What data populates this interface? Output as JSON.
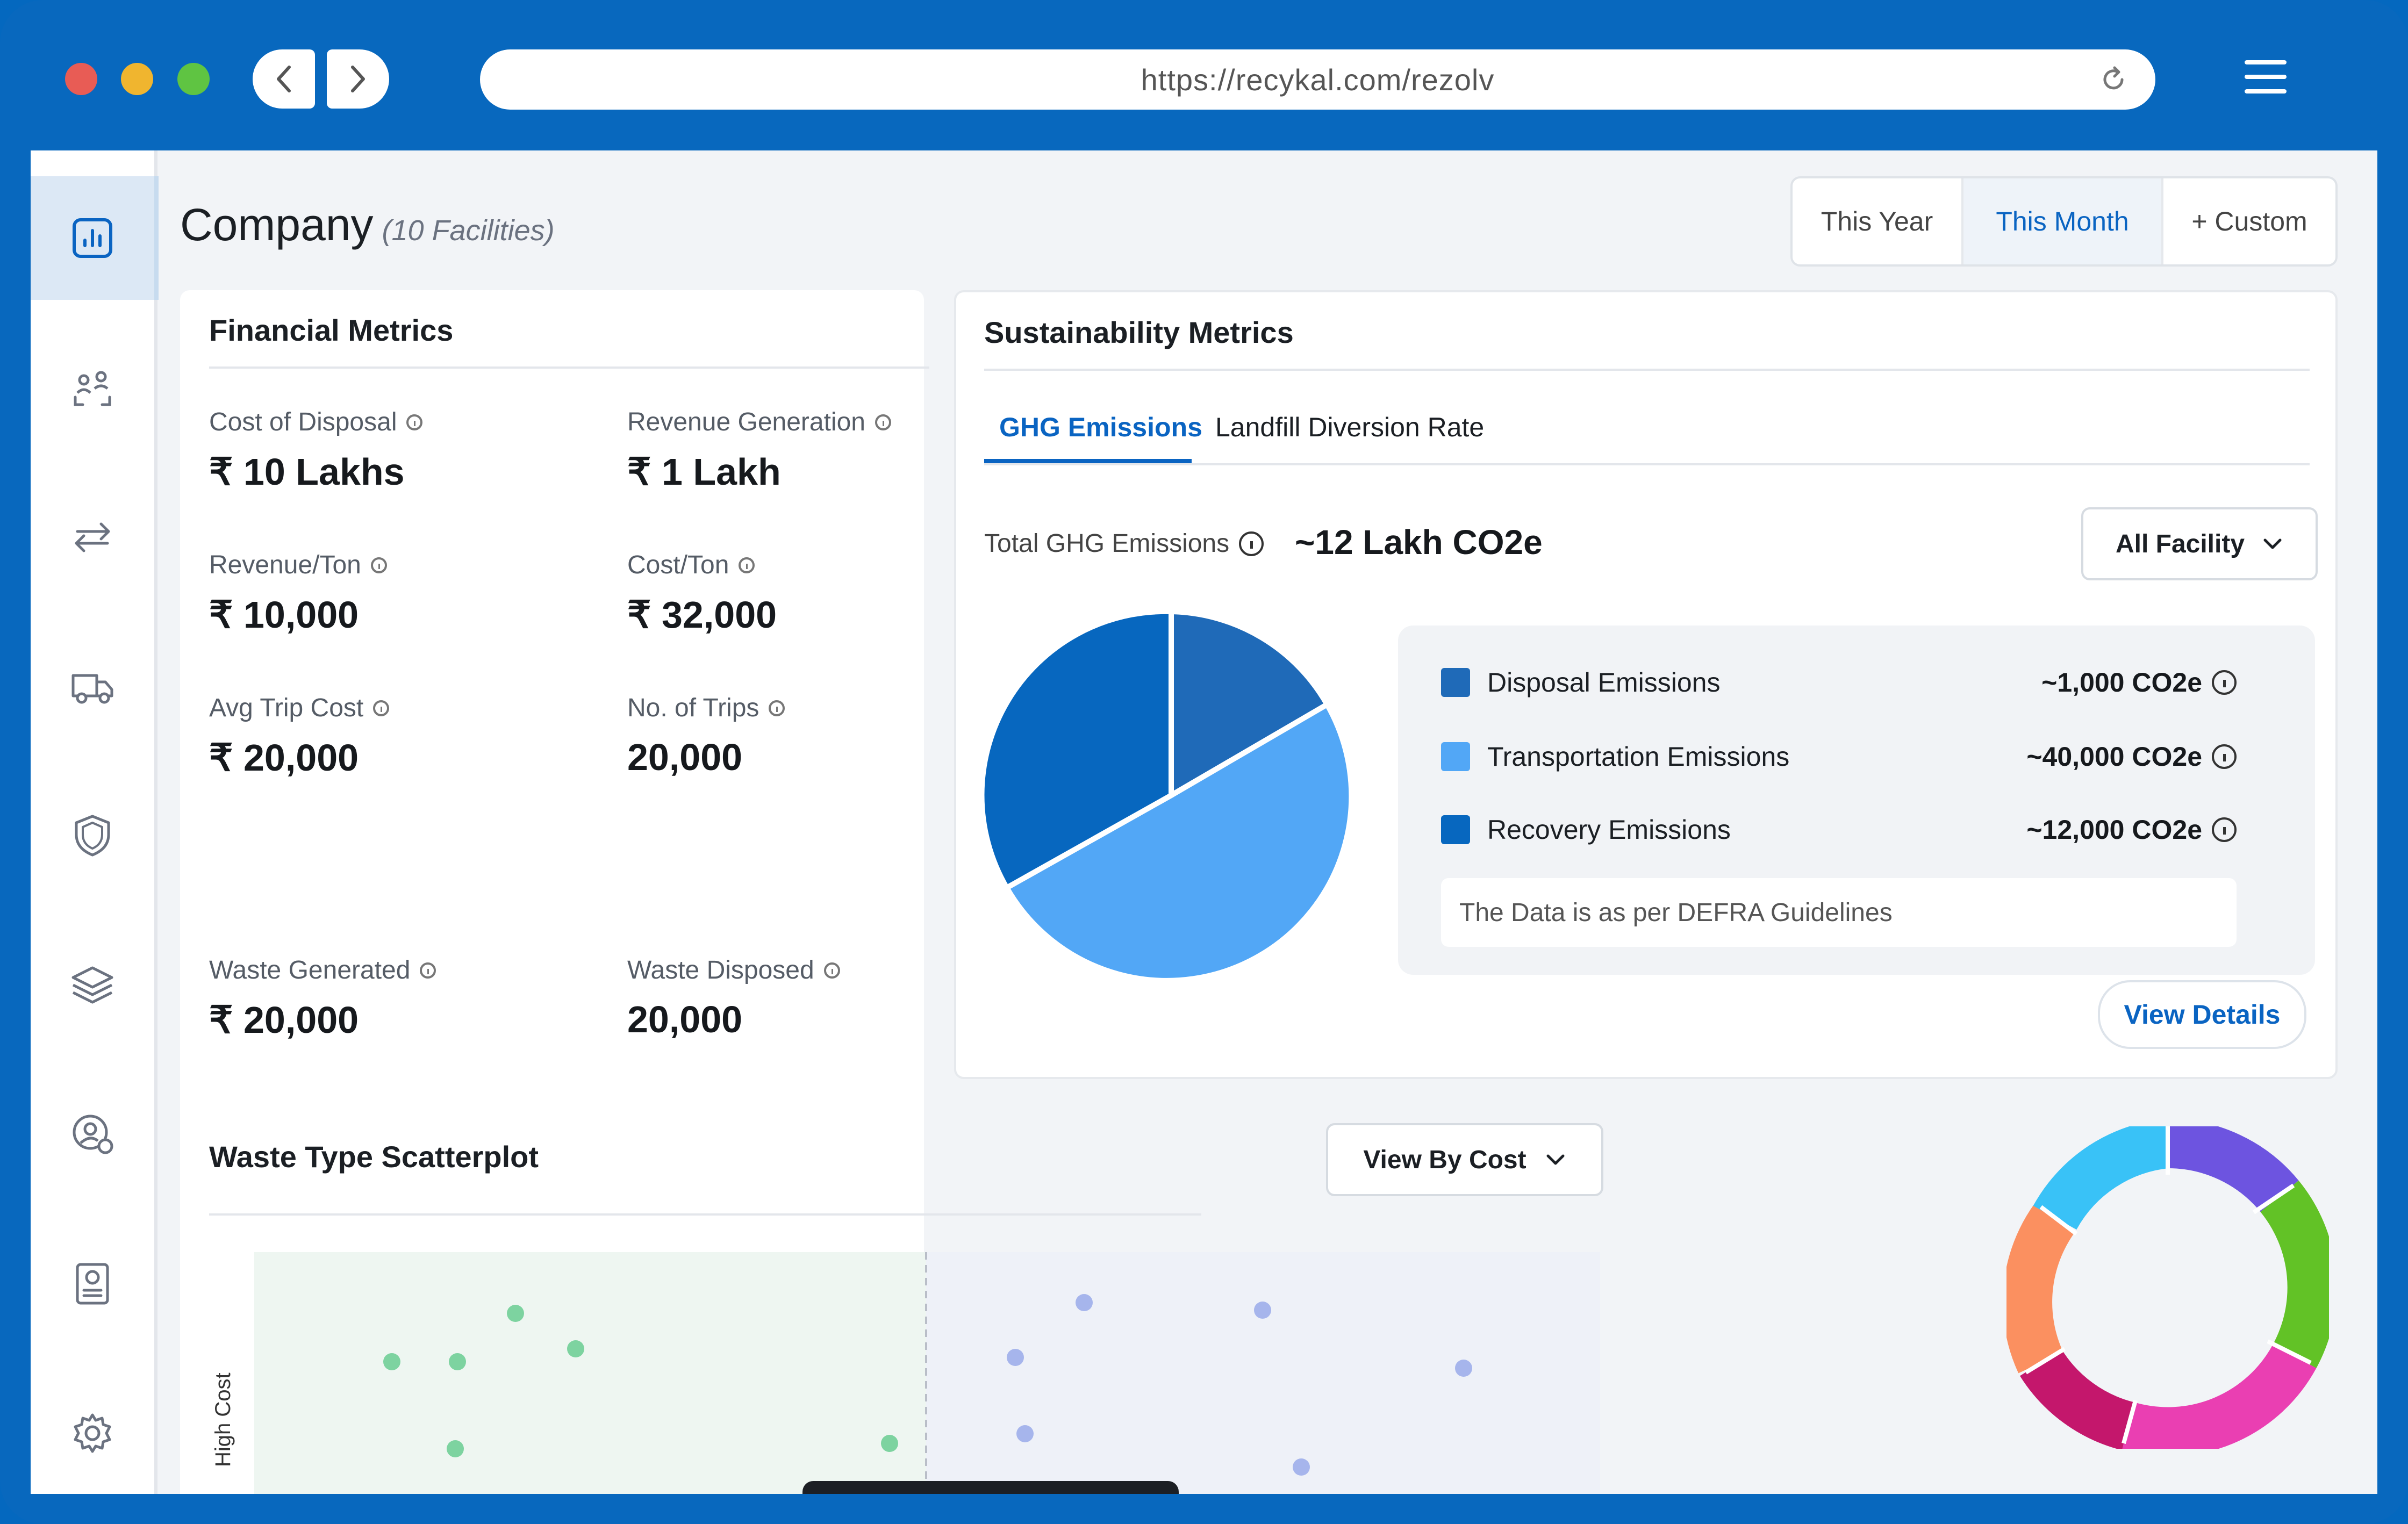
{
  "browser": {
    "url": "https://recykal.com/rezolv"
  },
  "sidebar": {
    "items": [
      {
        "icon": "bar-chart-icon",
        "active": true
      },
      {
        "icon": "user-scan-icon"
      },
      {
        "icon": "transfer-arrows-icon"
      },
      {
        "icon": "truck-icon"
      },
      {
        "icon": "shield-icon"
      },
      {
        "icon": "layers-icon"
      },
      {
        "icon": "user-settings-icon"
      },
      {
        "icon": "report-icon"
      },
      {
        "icon": "gear-icon"
      }
    ]
  },
  "header": {
    "title": "Company",
    "subtitle": "(10 Facilities)",
    "periods": [
      "This Year",
      "This Month",
      "+ Custom"
    ],
    "selected_period": "This Month"
  },
  "financial": {
    "title": "Financial Metrics",
    "metrics": [
      {
        "label": "Cost of Disposal",
        "value": "₹ 10 Lakhs"
      },
      {
        "label": "Revenue Generation",
        "value": "₹ 1 Lakh"
      },
      {
        "label": "Revenue/Ton",
        "value": "₹ 10,000"
      },
      {
        "label": "Cost/Ton",
        "value": "₹ 32,000"
      },
      {
        "label": "Avg Trip Cost",
        "value": "₹ 20,000"
      },
      {
        "label": "No. of Trips",
        "value": "20,000"
      },
      {
        "label": "Waste Generated",
        "value": "₹ 20,000"
      },
      {
        "label": "Waste Disposed",
        "value": "20,000"
      }
    ]
  },
  "sustainability": {
    "title": "Sustainability Metrics",
    "tabs": [
      "GHG Emissions",
      "Landfill Diversion Rate"
    ],
    "active_tab": "GHG Emissions",
    "total_label": "Total GHG Emissions",
    "total_value": "~12 Lakh CO2e",
    "facility_select": "All Facility",
    "legend": [
      {
        "name": "Disposal Emissions",
        "value": "~1,000 CO2e",
        "color": "#1f6ab8"
      },
      {
        "name": "Transportation Emissions",
        "value": "~40,000 CO2e",
        "color": "#52a7f6"
      },
      {
        "name": "Recovery Emissions",
        "value": "~12,000 CO2e",
        "color": "#0767bf"
      }
    ],
    "note": "The Data is as per DEFRA Guidelines",
    "view_details": "View Details"
  },
  "scatter": {
    "title": "Waste Type Scatterplot",
    "view_select": "View By Cost",
    "y_label": "High Cost"
  },
  "colors": {
    "brand": "#0868be",
    "accent": "#0a64c2"
  }
}
